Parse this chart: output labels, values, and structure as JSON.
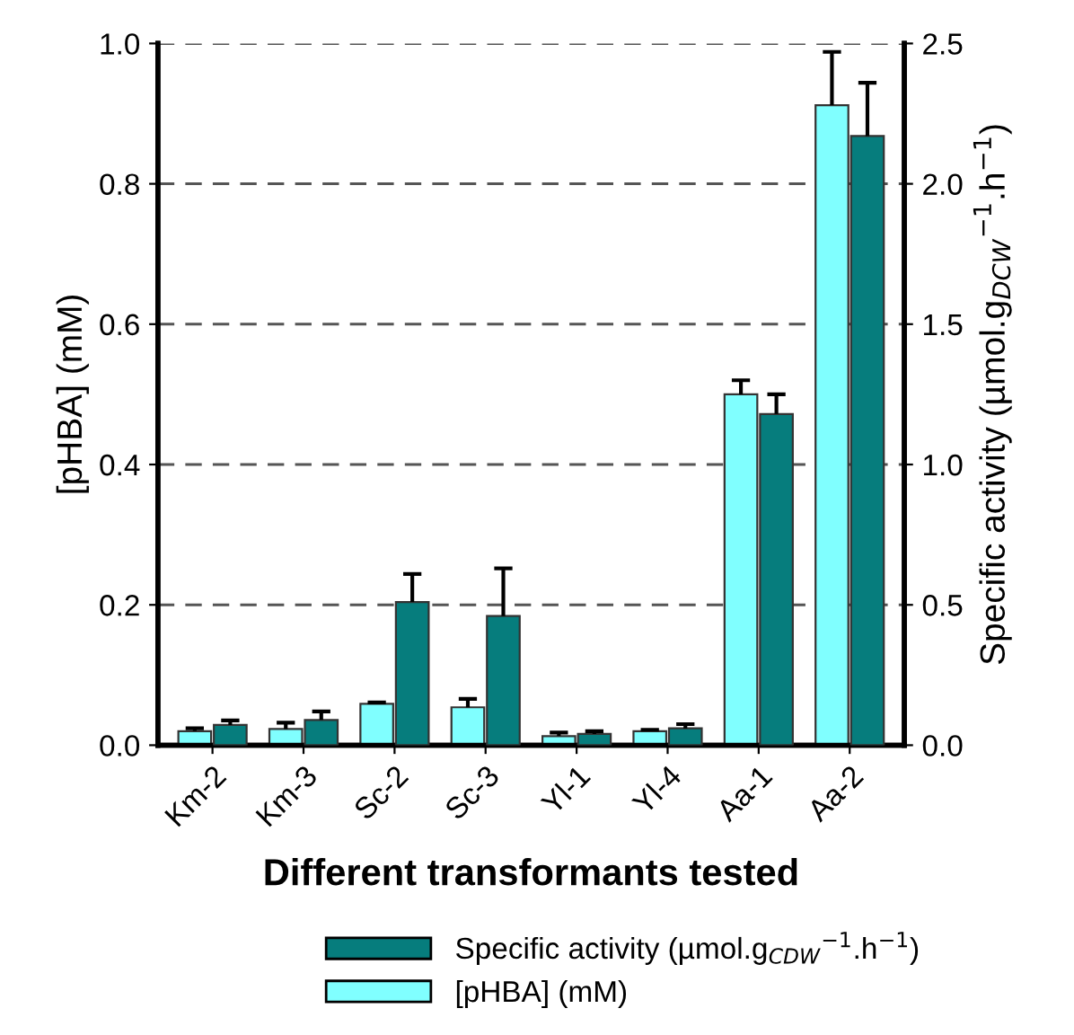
{
  "chart_data": {
    "type": "bar",
    "xlabel": "Different transformants tested",
    "ylabel": "[pHBA] (mM)",
    "y2label": "Specific activity (µmol.g$_{DCW}$$^{−1}$.h$^{−1}$)",
    "categories": [
      "Km-2",
      "Km-3",
      "Sc-2",
      "Sc-3",
      "Yl-1",
      "Yl-4",
      "Aa-1",
      "Aa-2"
    ],
    "series": [
      {
        "name": "[pHBA] (mM)",
        "color": "#80ffff",
        "values": [
          0.02,
          0.023,
          0.059,
          0.054,
          0.013,
          0.02,
          0.5,
          0.912
        ],
        "errors": [
          [
            0.02,
            0.024
          ],
          [
            0.023,
            0.032
          ],
          [
            0.059,
            0.061
          ],
          [
            0.054,
            0.066
          ],
          [
            0.013,
            0.018
          ],
          [
            0.02,
            0.022
          ],
          [
            0.5,
            0.52
          ],
          [
            0.912,
            0.988
          ]
        ]
      },
      {
        "name": "Specific activity (µmol.g$_{CDW}$$^{−1}$.h$^{−1}$)",
        "color": "#067d7d",
        "axis": "y2",
        "values": [
          0.072,
          0.09,
          0.51,
          0.46,
          0.04,
          0.06,
          1.18,
          2.17
        ],
        "errors": [
          [
            0.072,
            0.088
          ],
          [
            0.09,
            0.12
          ],
          [
            0.51,
            0.61
          ],
          [
            0.46,
            0.63
          ],
          [
            0.04,
            0.05
          ],
          [
            0.06,
            0.075
          ],
          [
            1.18,
            1.25
          ],
          [
            2.17,
            2.36
          ]
        ]
      }
    ],
    "ylim": [
      0,
      1.0
    ],
    "yticks": [
      {
        "value": 0,
        "label": "0.0"
      },
      0.2,
      0.4,
      0.6,
      0.8,
      {
        "value": 1.0,
        "label": "1.0"
      }
    ],
    "y2lim": [
      0,
      2.5
    ],
    "y2ticks": [
      {
        "value": 0,
        "label": "0.0"
      },
      0.5,
      {
        "value": 1.0,
        "label": "1.0"
      },
      1.5,
      {
        "value": 2.0,
        "label": "2.0"
      },
      2.5
    ],
    "grid": "y",
    "legend": "bottom"
  }
}
